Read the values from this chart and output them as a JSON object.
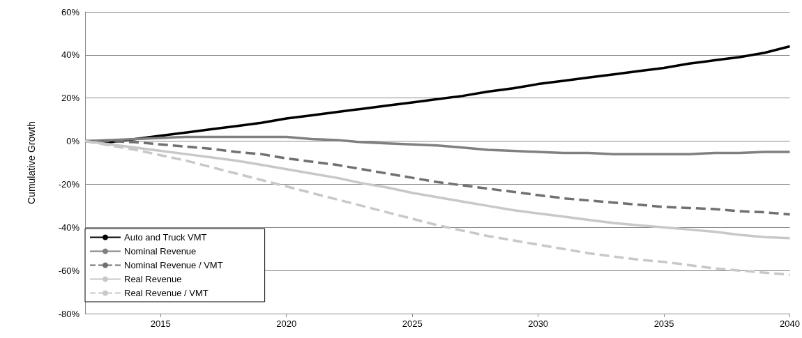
{
  "chart_data": {
    "type": "line",
    "ylabel": "Cumulative Growth",
    "x": [
      2012,
      2013,
      2014,
      2015,
      2016,
      2017,
      2018,
      2019,
      2020,
      2021,
      2022,
      2023,
      2024,
      2025,
      2026,
      2027,
      2028,
      2029,
      2030,
      2031,
      2032,
      2033,
      2034,
      2035,
      2036,
      2037,
      2038,
      2039,
      2040
    ],
    "series": [
      {
        "name": "Auto and Truck VMT",
        "color": "#000000",
        "line_style": "solid",
        "values": [
          0,
          -0.5,
          1,
          2.5,
          4,
          5.5,
          7,
          8.5,
          10.5,
          12,
          13.5,
          15,
          16.5,
          18,
          19.5,
          21,
          23,
          24.5,
          26.5,
          28,
          29.5,
          31,
          32.5,
          34,
          36,
          37.5,
          39,
          41,
          44
        ]
      },
      {
        "name": "Nominal Revenue",
        "color": "#808080",
        "line_style": "solid",
        "values": [
          0,
          0.5,
          1,
          1.5,
          2,
          2,
          2,
          2,
          2,
          1,
          0.5,
          -0.5,
          -1,
          -1.5,
          -2,
          -3,
          -4,
          -4.5,
          -5,
          -5.5,
          -5.5,
          -6,
          -6,
          -6,
          -6,
          -5.5,
          -5.5,
          -5,
          -5
        ]
      },
      {
        "name": "Nominal Revenue / VMT",
        "color": "#707070",
        "line_style": "dashed",
        "values": [
          0,
          0,
          -0.5,
          -1.5,
          -2.5,
          -3.5,
          -5,
          -6,
          -8,
          -9.5,
          -11,
          -13,
          -15,
          -17,
          -19,
          -20.5,
          -22,
          -23.5,
          -25,
          -26.5,
          -27.5,
          -28.5,
          -29.5,
          -30.5,
          -31,
          -31.5,
          -32.5,
          -33,
          -34
        ]
      },
      {
        "name": "Real Revenue",
        "color": "#c8c8c8",
        "line_style": "solid",
        "values": [
          0,
          -1.5,
          -3,
          -4.5,
          -6,
          -7.5,
          -9,
          -11,
          -13,
          -15,
          -17,
          -19.5,
          -21.5,
          -24,
          -26,
          -28,
          -30,
          -32,
          -33.5,
          -35,
          -36.5,
          -38,
          -39,
          -40,
          -41,
          -42,
          -43.5,
          -44.5,
          -45
        ]
      },
      {
        "name": "Real Revenue / VMT",
        "color": "#c8c8c8",
        "line_style": "dashed",
        "values": [
          0,
          -2,
          -4,
          -6.5,
          -9,
          -12,
          -15,
          -18,
          -21,
          -24,
          -27,
          -30,
          -33,
          -36,
          -39,
          -41.5,
          -44,
          -46,
          -48,
          -50,
          -52,
          -53.5,
          -55,
          -56,
          -57.5,
          -59,
          -60,
          -61,
          -62
        ]
      }
    ],
    "xlim": [
      2012,
      2040
    ],
    "xticks": [
      2015,
      2020,
      2025,
      2030,
      2035,
      2040
    ],
    "ylim": [
      -80,
      60
    ],
    "yticks": [
      {
        "value": -80,
        "label": "-80%"
      },
      {
        "value": -60,
        "label": "-60%"
      },
      {
        "value": -40,
        "label": "-40%"
      },
      {
        "value": -20,
        "label": "-20%"
      },
      {
        "value": 0,
        "label": "0%"
      },
      {
        "value": 20,
        "label": "20%"
      },
      {
        "value": 40,
        "label": "40%"
      },
      {
        "value": 60,
        "label": "60%"
      }
    ],
    "grid": "y",
    "legend": "bottom left",
    "marker": "none"
  }
}
